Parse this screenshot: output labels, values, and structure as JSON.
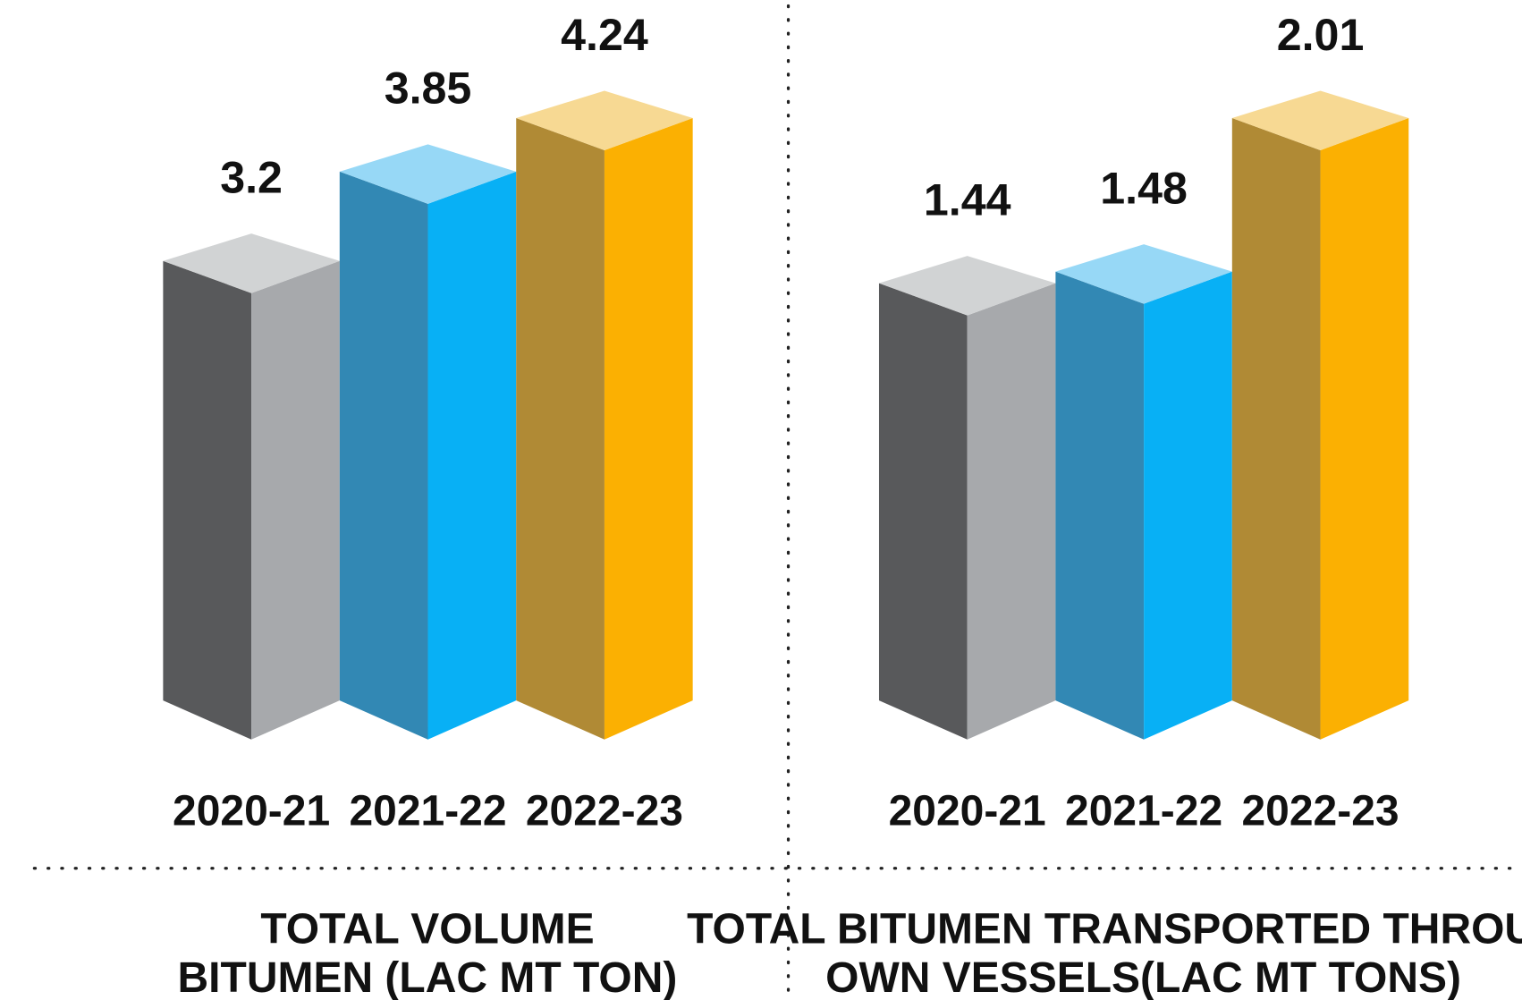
{
  "chart_data": [
    {
      "type": "bar",
      "title": [
        "TOTAL VOLUME",
        "BITUMEN (LAC MT TON)"
      ],
      "categories": [
        "2020-21",
        "2021-22",
        "2022-23"
      ],
      "values": [
        3.2,
        3.85,
        4.24
      ],
      "colors": [
        {
          "left": "#58595b",
          "right": "#a7a9ac",
          "top": "#d1d3d4"
        },
        {
          "left": "#3288b4",
          "right": "#08b0f5",
          "top": "#97d8f6"
        },
        {
          "left": "#b08a35",
          "right": "#fbb002",
          "top": "#f7d993"
        }
      ]
    },
    {
      "type": "bar",
      "title": [
        "TOTAL BITUMEN TRANSPORTED THROUGH",
        "OWN VESSELS(LAC MT TONS)"
      ],
      "categories": [
        "2020-21",
        "2021-22",
        "2022-23"
      ],
      "values": [
        1.44,
        1.48,
        2.01
      ],
      "colors": [
        {
          "left": "#58595b",
          "right": "#a7a9ac",
          "top": "#d1d3d4"
        },
        {
          "left": "#3288b4",
          "right": "#08b0f5",
          "top": "#97d8f6"
        },
        {
          "left": "#b08a35",
          "right": "#fbb002",
          "top": "#f7d993"
        }
      ]
    }
  ]
}
